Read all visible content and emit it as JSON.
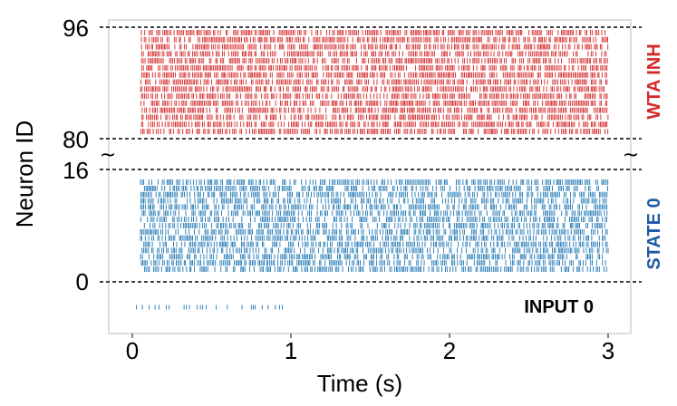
{
  "chart_data": {
    "type": "scatter",
    "xlabel": "Time (s)",
    "ylabel": "Neuron ID",
    "xlim": [
      -0.15,
      3.15
    ],
    "x_ticks": [
      "0",
      "1",
      "2",
      "3"
    ],
    "y_ticks": [
      "96",
      "80",
      "16",
      "0"
    ],
    "grid": false,
    "panels": [
      {
        "label": "WTA INH",
        "color": "#d62728",
        "label_color": "#d62728",
        "neuron_range": [
          80,
          96
        ],
        "neurons_shown": [
          81,
          95
        ],
        "spike_time_range": [
          0.05,
          3.0
        ]
      },
      {
        "label": "STATE 0",
        "color": "#1f77b4",
        "label_color": "#1f5aa6",
        "neuron_range": [
          0,
          16
        ],
        "neurons_shown": [
          1,
          15
        ],
        "spike_time_range": [
          0.05,
          3.0
        ]
      },
      {
        "label": "INPUT 0",
        "color": "#1f77b4",
        "label_color": "#000000",
        "neuron_range": [
          -1,
          -1
        ],
        "spike_time_range": [
          0.0,
          0.98
        ]
      }
    ],
    "break_symbol": "~"
  }
}
